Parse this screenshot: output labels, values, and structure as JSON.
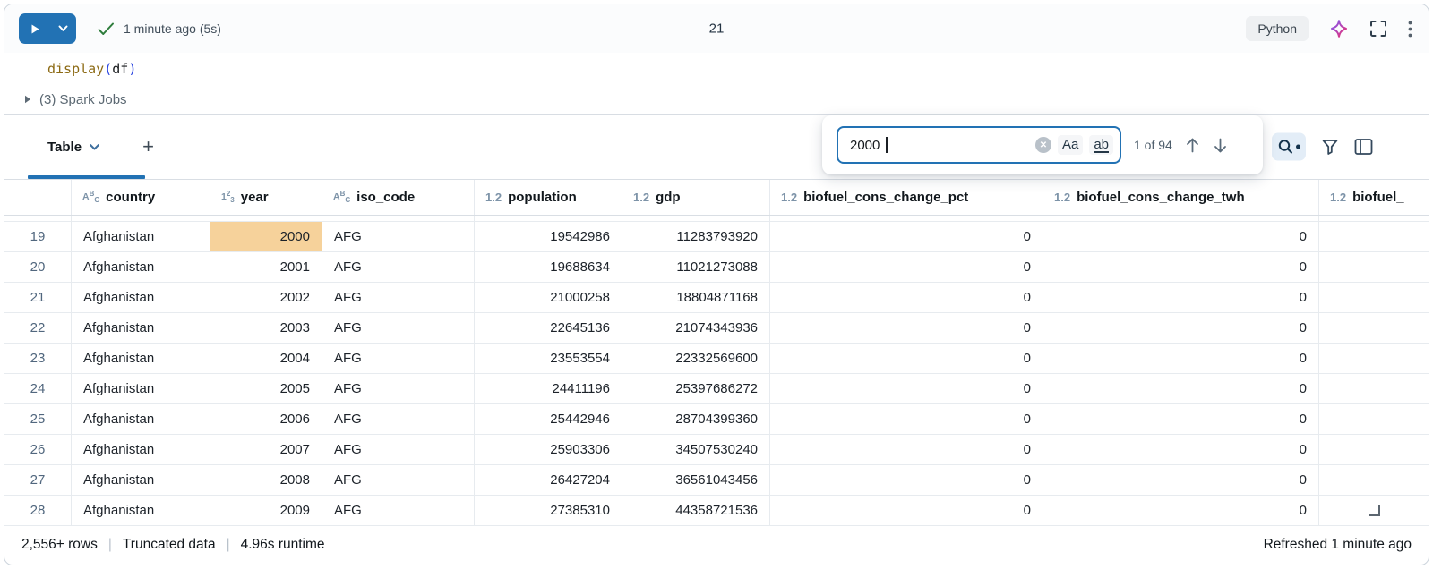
{
  "cell": {
    "exec_count": "21",
    "run_status": "1 minute ago (5s)",
    "language_badge": "Python",
    "code": {
      "function": "display",
      "open_paren": "(",
      "argument": "df",
      "close_paren": ")"
    },
    "spark_jobs_label": "(3) Spark Jobs"
  },
  "toolbar": {
    "tab_label": "Table",
    "add_label": "+"
  },
  "search": {
    "query": "2000",
    "match_case_label": "Aa",
    "whole_word_label": "ab",
    "result_count": "1 of 94"
  },
  "table": {
    "columns": [
      {
        "label": "",
        "type": "none"
      },
      {
        "label": "country",
        "type": "string"
      },
      {
        "label": "year",
        "type": "int"
      },
      {
        "label": "iso_code",
        "type": "string"
      },
      {
        "label": "population",
        "type": "float"
      },
      {
        "label": "gdp",
        "type": "float"
      },
      {
        "label": "biofuel_cons_change_pct",
        "type": "float"
      },
      {
        "label": "biofuel_cons_change_twh",
        "type": "float"
      },
      {
        "label": "biofuel_",
        "type": "float"
      }
    ],
    "rows": [
      {
        "num": "19",
        "hl_col": 1,
        "cells": [
          "Afghanistan",
          "2000",
          "AFG",
          "19542986",
          "11283793920",
          "0",
          "0",
          ""
        ]
      },
      {
        "num": "20",
        "cells": [
          "Afghanistan",
          "2001",
          "AFG",
          "19688634",
          "11021273088",
          "0",
          "0",
          ""
        ]
      },
      {
        "num": "21",
        "cells": [
          "Afghanistan",
          "2002",
          "AFG",
          "21000258",
          "18804871168",
          "0",
          "0",
          ""
        ]
      },
      {
        "num": "22",
        "cells": [
          "Afghanistan",
          "2003",
          "AFG",
          "22645136",
          "21074343936",
          "0",
          "0",
          ""
        ]
      },
      {
        "num": "23",
        "cells": [
          "Afghanistan",
          "2004",
          "AFG",
          "23553554",
          "22332569600",
          "0",
          "0",
          ""
        ]
      },
      {
        "num": "24",
        "cells": [
          "Afghanistan",
          "2005",
          "AFG",
          "24411196",
          "25397686272",
          "0",
          "0",
          ""
        ]
      },
      {
        "num": "25",
        "cells": [
          "Afghanistan",
          "2006",
          "AFG",
          "25442946",
          "28704399360",
          "0",
          "0",
          ""
        ]
      },
      {
        "num": "26",
        "cells": [
          "Afghanistan",
          "2007",
          "AFG",
          "25903306",
          "34507530240",
          "0",
          "0",
          ""
        ]
      },
      {
        "num": "27",
        "cells": [
          "Afghanistan",
          "2008",
          "AFG",
          "26427204",
          "36561043456",
          "0",
          "0",
          ""
        ]
      },
      {
        "num": "28",
        "cells": [
          "Afghanistan",
          "2009",
          "AFG",
          "27385310",
          "44358721536",
          "0",
          "0",
          ""
        ]
      }
    ]
  },
  "footer": {
    "row_count": "2,556+ rows",
    "separator": "|",
    "truncated": "Truncated data",
    "runtime": "4.96s runtime",
    "refreshed": "Refreshed 1 minute ago"
  },
  "colors": {
    "accent_blue": "#2272b4",
    "highlight_orange": "#f6d29b",
    "success_green": "#2e7d3c"
  }
}
